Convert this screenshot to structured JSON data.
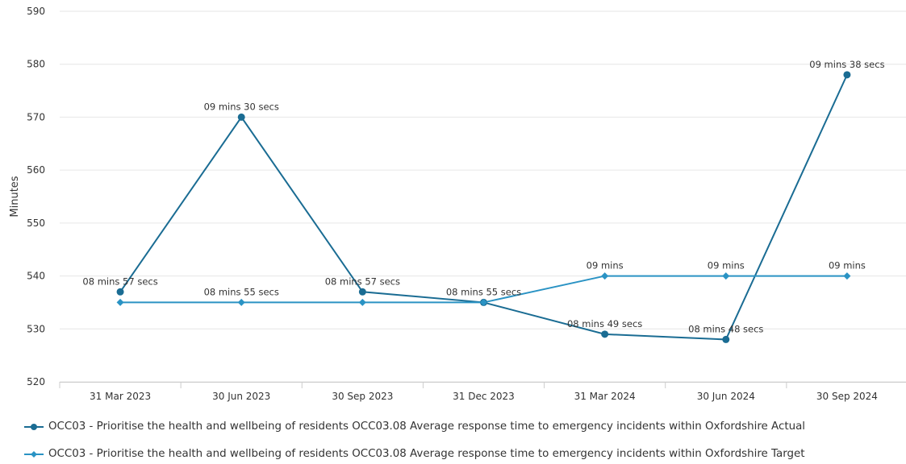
{
  "chart_data": {
    "type": "line",
    "title": "",
    "xlabel": "",
    "ylabel": "Minutes",
    "ylim": [
      520,
      590
    ],
    "yticks": [
      520,
      530,
      540,
      550,
      560,
      570,
      580,
      590
    ],
    "grid": true,
    "legend_position": "bottom",
    "categories": [
      "31 Mar 2023",
      "30 Jun 2023",
      "30 Sep 2023",
      "31 Dec 2023",
      "31 Mar 2024",
      "30 Jun 2024",
      "30 Sep 2024"
    ],
    "series": [
      {
        "name": "OCC03 - Prioritise the health and wellbeing of residents OCC03.08 Average response time to emergency incidents within Oxfordshire Actual",
        "color": "#1a6c93",
        "marker": "circle",
        "values": [
          537,
          570,
          537,
          535,
          529,
          528,
          578
        ],
        "labels": [
          "08 mins 57 secs",
          "09 mins 30 secs",
          "08 mins 57 secs",
          null,
          "08 mins 49 secs",
          "08 mins 48 secs",
          "09 mins 38 secs"
        ]
      },
      {
        "name": "OCC03 - Prioritise the health and wellbeing of residents OCC03.08 Average response time to emergency incidents within Oxfordshire Target",
        "color": "#2a93c4",
        "marker": "diamond",
        "values": [
          535,
          535,
          535,
          535,
          540,
          540,
          540
        ],
        "labels": [
          null,
          "08 mins 55 secs",
          null,
          "08 mins 55 secs",
          "09 mins",
          "09 mins",
          "09 mins"
        ]
      }
    ]
  }
}
